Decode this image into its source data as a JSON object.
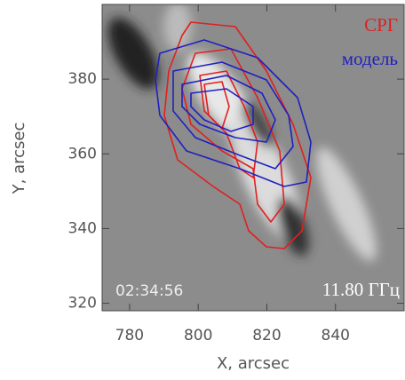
{
  "chart_data": {
    "type": "image",
    "x_label": "X, arcsec",
    "y_label": "Y, arcsec",
    "xlim": [
      772,
      860
    ],
    "ylim": [
      318,
      400
    ],
    "xticks": [
      780,
      800,
      820,
      840
    ],
    "yticks": [
      320,
      340,
      360,
      380
    ],
    "series": [
      {
        "name": "СРГ",
        "color": "#e02020"
      },
      {
        "name": "модель",
        "color": "#2020c0"
      }
    ],
    "timestamp": "02:34:56",
    "frequency": "11.80 ГГц"
  }
}
